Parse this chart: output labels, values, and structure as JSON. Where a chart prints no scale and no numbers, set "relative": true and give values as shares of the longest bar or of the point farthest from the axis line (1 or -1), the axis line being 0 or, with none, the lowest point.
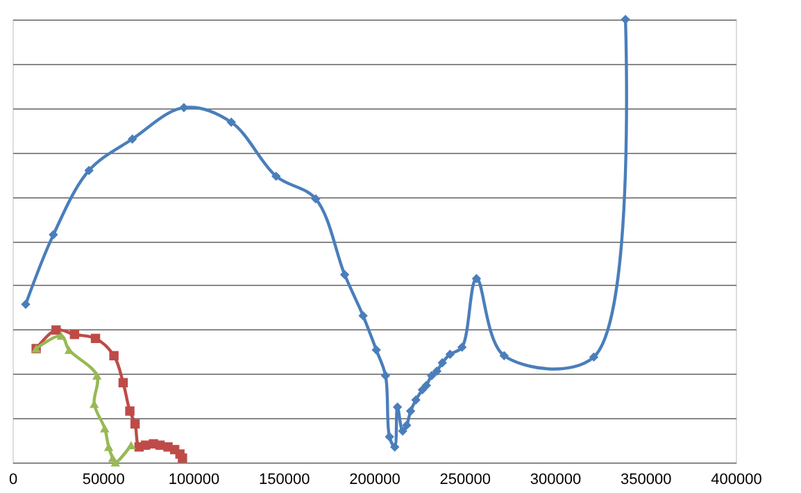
{
  "chart_data": {
    "type": "line",
    "relative": true,
    "grid": "y",
    "line_style": "solid",
    "xlim": [
      0,
      400000
    ],
    "xticks": [
      0,
      50000,
      100000,
      150000,
      200000,
      250000,
      300000,
      350000,
      400000
    ],
    "series": [
      {
        "color": "#4a7ebb",
        "marker": "diamond",
        "x": [
          7290,
          22600,
          42300,
          66300,
          94800,
          121000,
          145800,
          167700,
          183700,
          193900,
          201200,
          206300,
          208500,
          211400,
          212900,
          215800,
          218000,
          220200,
          223100,
          226700,
          228900,
          231800,
          234700,
          237700,
          242000,
          248600,
          256600,
          271900,
          321500,
          339000
        ],
        "values": [
          0.357,
          0.514,
          0.659,
          0.73,
          0.801,
          0.768,
          0.646,
          0.595,
          0.424,
          0.331,
          0.254,
          0.196,
          0.058,
          0.035,
          0.125,
          0.071,
          0.084,
          0.116,
          0.141,
          0.164,
          0.174,
          0.196,
          0.206,
          0.225,
          0.244,
          0.26,
          0.415,
          0.241,
          0.238,
          1.0
        ]
      },
      {
        "color": "#be4b48",
        "marker": "square",
        "x": [
          13100,
          24100,
          34300,
          45900,
          56100,
          61200,
          64900,
          67800,
          70000,
          73600,
          78000,
          81600,
          86000,
          89700,
          92600,
          94000
        ],
        "values": [
          0.257,
          0.299,
          0.289,
          0.28,
          0.241,
          0.18,
          0.116,
          0.087,
          0.035,
          0.039,
          0.042,
          0.039,
          0.035,
          0.029,
          0.019,
          0.01
        ]
      },
      {
        "color": "#98b954",
        "marker": "triangle",
        "x": [
          13100,
          27000,
          31300,
          46700,
          45200,
          51000,
          53200,
          55400,
          56900,
          65600
        ],
        "values": [
          0.257,
          0.286,
          0.254,
          0.196,
          0.132,
          0.077,
          0.035,
          0.01,
          0.0,
          0.039
        ]
      }
    ]
  }
}
